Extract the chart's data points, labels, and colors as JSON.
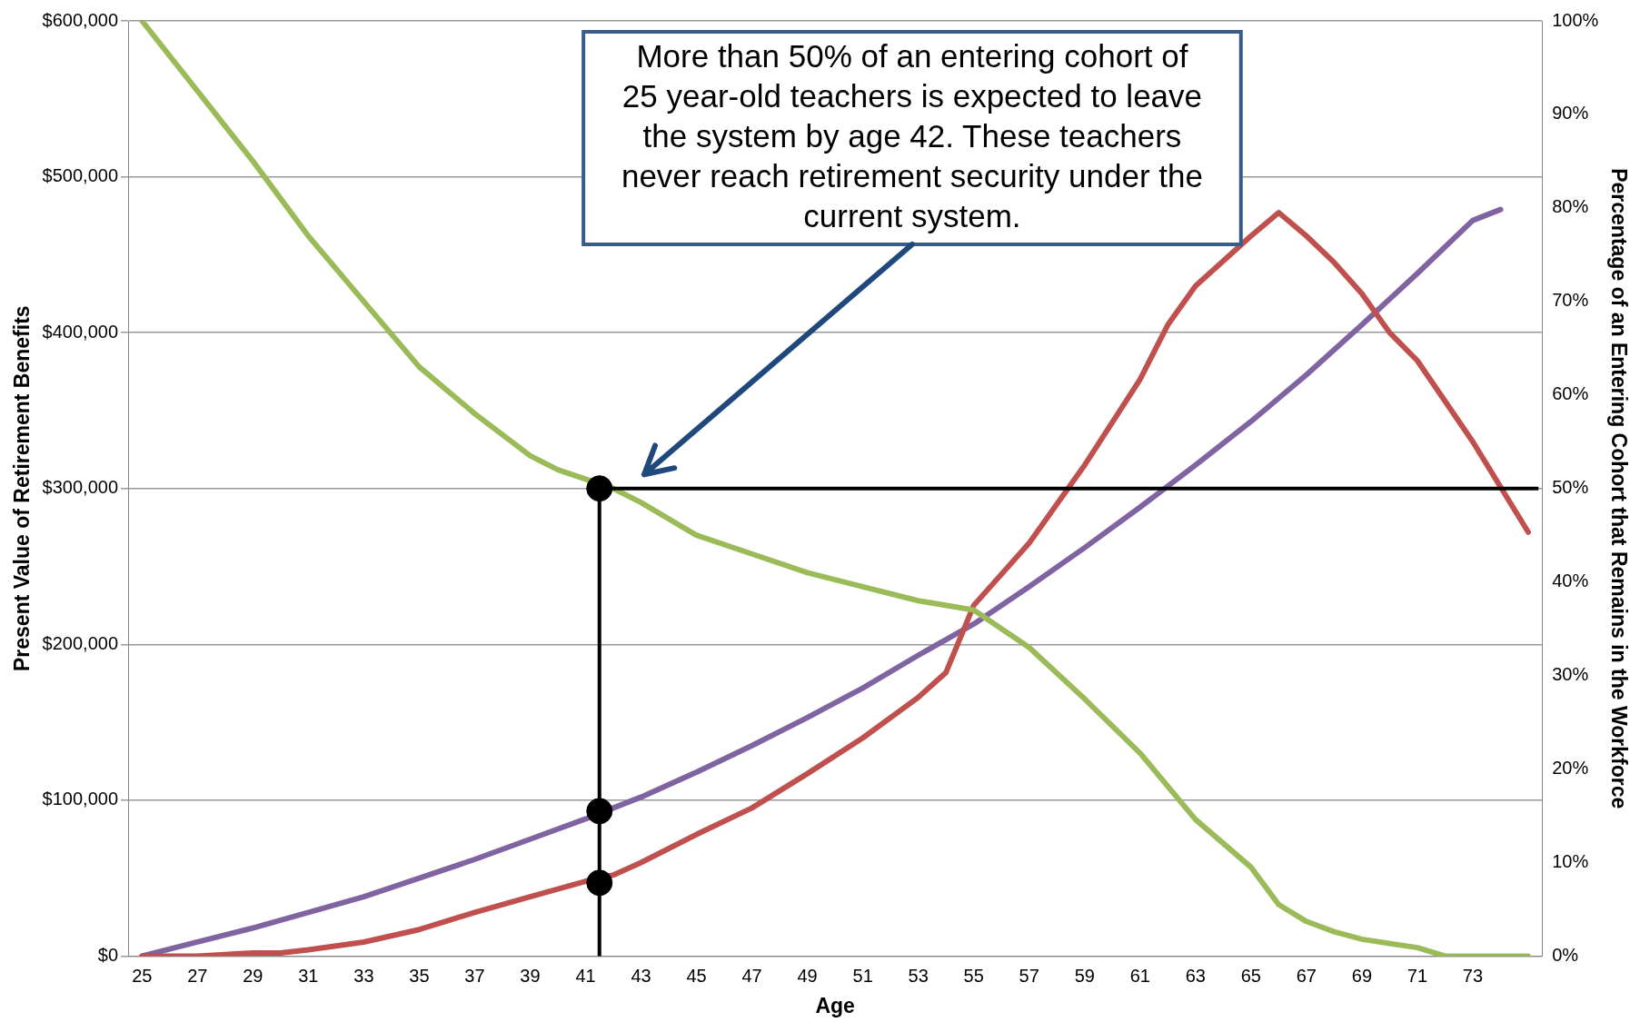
{
  "chart_data": {
    "type": "line",
    "xlabel": "Age",
    "ylabel": "Present Value of Retirement Benefits",
    "y2label": "Percentage of an Entering Cohort that Remains in the Workforce",
    "xlim": [
      24.5,
      75.5
    ],
    "xticks": [
      25,
      27,
      29,
      31,
      33,
      35,
      37,
      39,
      41,
      43,
      45,
      47,
      49,
      51,
      53,
      55,
      57,
      59,
      61,
      63,
      65,
      67,
      69,
      71,
      73
    ],
    "ylim": [
      0,
      600000
    ],
    "yticks": [
      {
        "value": 0,
        "label": "$0"
      },
      {
        "value": 100000,
        "label": "$100,000"
      },
      {
        "value": 200000,
        "label": "$200,000"
      },
      {
        "value": 300000,
        "label": "$300,000"
      },
      {
        "value": 400000,
        "label": "$400,000"
      },
      {
        "value": 500000,
        "label": "$500,000"
      },
      {
        "value": 600000,
        "label": "$600,000"
      }
    ],
    "y2lim": [
      0,
      100
    ],
    "y2ticks": [
      {
        "value": 0,
        "label": "0%"
      },
      {
        "value": 10,
        "label": "10%"
      },
      {
        "value": 20,
        "label": "20%"
      },
      {
        "value": 30,
        "label": "30%"
      },
      {
        "value": 40,
        "label": "40%"
      },
      {
        "value": 50,
        "label": "50%"
      },
      {
        "value": 60,
        "label": "60%"
      },
      {
        "value": 70,
        "label": "70%"
      },
      {
        "value": 80,
        "label": "80%"
      },
      {
        "value": 90,
        "label": "90%"
      },
      {
        "value": 100,
        "label": "100%"
      }
    ],
    "grid": "y",
    "legend": false,
    "marker": "none",
    "line_style": "solid",
    "series": [
      {
        "axis": "y2",
        "color": "#9bbb59",
        "x": [
          25,
          27,
          29,
          31,
          33,
          35,
          37,
          39,
          40,
          42,
          43,
          45,
          47,
          49,
          51,
          53,
          55,
          57,
          59,
          61,
          63,
          65,
          66,
          67,
          68,
          69,
          71,
          72,
          75
        ],
        "values": [
          100,
          92.5,
          85,
          77,
          70,
          63,
          58,
          53.5,
          52,
          50,
          48.5,
          45,
          43,
          41,
          39.5,
          38,
          37,
          33,
          27.5,
          21.7,
          14.6,
          9.5,
          5.5,
          3.7,
          2.6,
          1.8,
          0.9,
          0,
          0
        ]
      },
      {
        "axis": "y",
        "color": "#c0504d",
        "x": [
          25,
          27,
          29,
          30,
          31,
          33,
          35,
          37,
          39,
          41,
          42,
          43,
          45,
          47,
          49,
          51,
          53,
          54,
          55,
          57,
          59,
          61,
          62,
          63,
          65,
          66,
          67,
          68,
          69,
          70,
          71,
          73,
          75
        ],
        "values": [
          0,
          0,
          2000,
          2000,
          4000,
          9000,
          17000,
          28000,
          38000,
          48000,
          52000,
          60000,
          78000,
          95000,
          117000,
          140000,
          166000,
          182000,
          225000,
          265000,
          315000,
          370000,
          405000,
          430000,
          462000,
          477000,
          462000,
          445000,
          425000,
          400000,
          382000,
          330000,
          272000
        ]
      },
      {
        "axis": "y",
        "color": "#8064a2",
        "x": [
          25,
          27,
          29,
          31,
          33,
          35,
          37,
          39,
          41,
          42,
          43,
          45,
          47,
          49,
          51,
          53,
          55,
          57,
          59,
          61,
          63,
          65,
          67,
          69,
          71,
          73,
          74
        ],
        "values": [
          0,
          9000,
          18000,
          28000,
          38000,
          50000,
          62000,
          75000,
          88000,
          95000,
          102000,
          118000,
          135000,
          153000,
          172000,
          193000,
          213000,
          237000,
          262000,
          288000,
          315000,
          343000,
          373000,
          405000,
          438000,
          472000,
          479000
        ]
      },
      {
        "type": "scatter",
        "marker": "circle",
        "axis": "y",
        "color": "#000000",
        "x": [
          41.5,
          41.5,
          41.5
        ],
        "values": [
          300000,
          93000,
          47000
        ]
      }
    ],
    "ref_lines": [
      {
        "axis": "x",
        "value": 41.5,
        "color": "#000000"
      },
      {
        "axis": "y2",
        "value": 50,
        "color": "#000000"
      }
    ],
    "annotations": [
      "More than 50% of an entering cohort of 25 year-old teachers is expected to leave the system by age 42. These teachers never reach retirement security under the current system."
    ]
  }
}
